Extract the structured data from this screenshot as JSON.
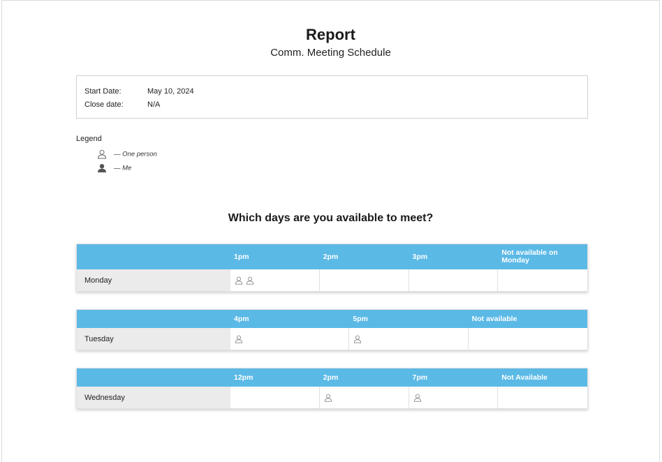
{
  "report": {
    "title": "Report",
    "subtitle": "Comm. Meeting Schedule"
  },
  "info": {
    "start_label": "Start Date:",
    "start_value": "May 10, 2024",
    "close_label": "Close date:",
    "close_value": "N/A"
  },
  "legend": {
    "title": "Legend",
    "one_person": "— One person",
    "me": "— Me"
  },
  "question": "Which days are you available to meet?",
  "tables": [
    {
      "day": "Monday",
      "columns": [
        "1pm",
        "2pm",
        "3pm",
        "Not available on Monday"
      ],
      "counts": [
        2,
        0,
        0,
        0
      ]
    },
    {
      "day": "Tuesday",
      "columns": [
        "4pm",
        "5pm",
        "Not available"
      ],
      "counts": [
        1,
        1,
        0
      ]
    },
    {
      "day": "Wednesday",
      "columns": [
        "12pm",
        "2pm",
        "7pm",
        "Not Available"
      ],
      "counts": [
        0,
        1,
        1,
        0
      ]
    }
  ],
  "icons": {
    "person_outline": "person-outline-icon",
    "person_filled": "person-filled-icon"
  },
  "colors": {
    "header": "#5bb9e6",
    "day_cell": "#ebebeb"
  }
}
